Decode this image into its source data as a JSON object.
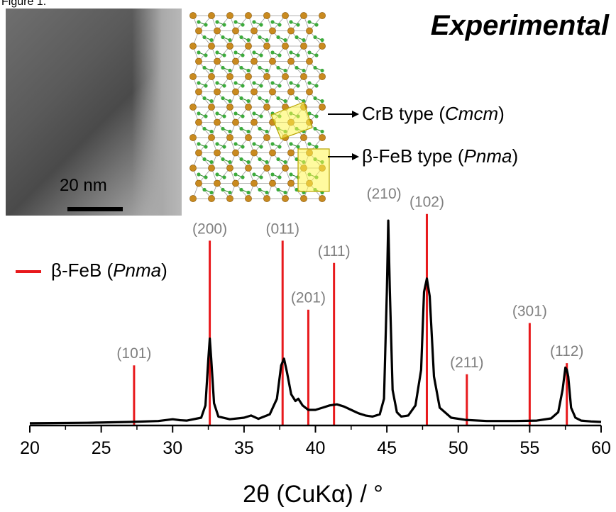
{
  "figure_label": "Figure 1.",
  "heading": "Experimental",
  "tem_inset": {
    "scale_bar_label": "20 nm"
  },
  "structure_inset": {
    "annotations": [
      {
        "text_before": "CrB type (",
        "italic": "Cmcm",
        "text_after": ")"
      },
      {
        "text_before": "β-FeB type (",
        "italic": "Pnma",
        "text_after": ")"
      }
    ]
  },
  "chart_data": {
    "type": "line",
    "xlabel": "2θ (CuKα) / °",
    "ylabel": "",
    "xlim": [
      20,
      60
    ],
    "xticks": [
      20,
      25,
      30,
      35,
      40,
      45,
      50,
      55,
      60
    ],
    "xtick_labels": [
      "20",
      "25",
      "30",
      "35",
      "40",
      "45",
      "50",
      "55",
      "60"
    ],
    "ylim": [
      0,
      100
    ],
    "legend": {
      "placement": "left",
      "text_before": "β-FeB (",
      "italic": "Pnma",
      "text_after": ")"
    },
    "reference_lines": [
      {
        "x": 27.3,
        "height": 27,
        "label": "(101)"
      },
      {
        "x": 32.6,
        "height": 83,
        "label": "(200)"
      },
      {
        "x": 37.7,
        "height": 83,
        "label": "(011)"
      },
      {
        "x": 39.5,
        "height": 52,
        "label": "(201)"
      },
      {
        "x": 41.3,
        "height": 73,
        "label": "(111)"
      },
      {
        "x": 47.8,
        "height": 95,
        "label": "(102)"
      },
      {
        "x": 50.6,
        "height": 23,
        "label": "(211)"
      },
      {
        "x": 55.0,
        "height": 46,
        "label": "(301)"
      },
      {
        "x": 57.6,
        "height": 28,
        "label": "(112)"
      }
    ],
    "peak_label_210": {
      "x": 45.1,
      "label": "(210)"
    },
    "series": [
      {
        "color": "#000000",
        "x": [
          20,
          24,
          27,
          29,
          30,
          30.5,
          31,
          32,
          32.3,
          32.5,
          32.6,
          32.7,
          32.9,
          33.2,
          34,
          35,
          35.5,
          36,
          36.8,
          37.3,
          37.6,
          37.8,
          38.0,
          38.3,
          38.6,
          38.8,
          39.1,
          39.5,
          40,
          40.5,
          41,
          41.5,
          42,
          42.5,
          43,
          43.5,
          44,
          44.5,
          44.8,
          45.0,
          45.1,
          45.2,
          45.4,
          45.7,
          46,
          46.5,
          47,
          47.4,
          47.6,
          47.8,
          48.0,
          48.3,
          48.7,
          49.5,
          50.5,
          52,
          54,
          55.5,
          56.5,
          57,
          57.3,
          57.5,
          57.6,
          57.7,
          57.9,
          58.2,
          58.6,
          59.3,
          60
        ],
        "y": [
          1.0,
          1.2,
          1.6,
          2.0,
          2.8,
          2.4,
          2.2,
          3.5,
          9,
          30,
          39,
          30,
          10,
          4,
          2.8,
          3.5,
          4.5,
          3.0,
          5,
          12,
          27,
          30,
          24,
          14,
          11,
          12,
          9,
          7,
          7,
          8,
          9,
          9.5,
          8.5,
          7,
          5.5,
          4.5,
          4.0,
          5,
          12,
          60,
          92,
          62,
          16,
          6,
          4.0,
          4.5,
          9,
          25,
          60,
          66,
          58,
          22,
          8,
          3.5,
          2.5,
          2.0,
          2.0,
          2.2,
          3.2,
          6,
          16,
          26,
          25,
          22,
          8,
          3.5,
          2.2,
          1.8,
          1.6
        ]
      }
    ]
  }
}
